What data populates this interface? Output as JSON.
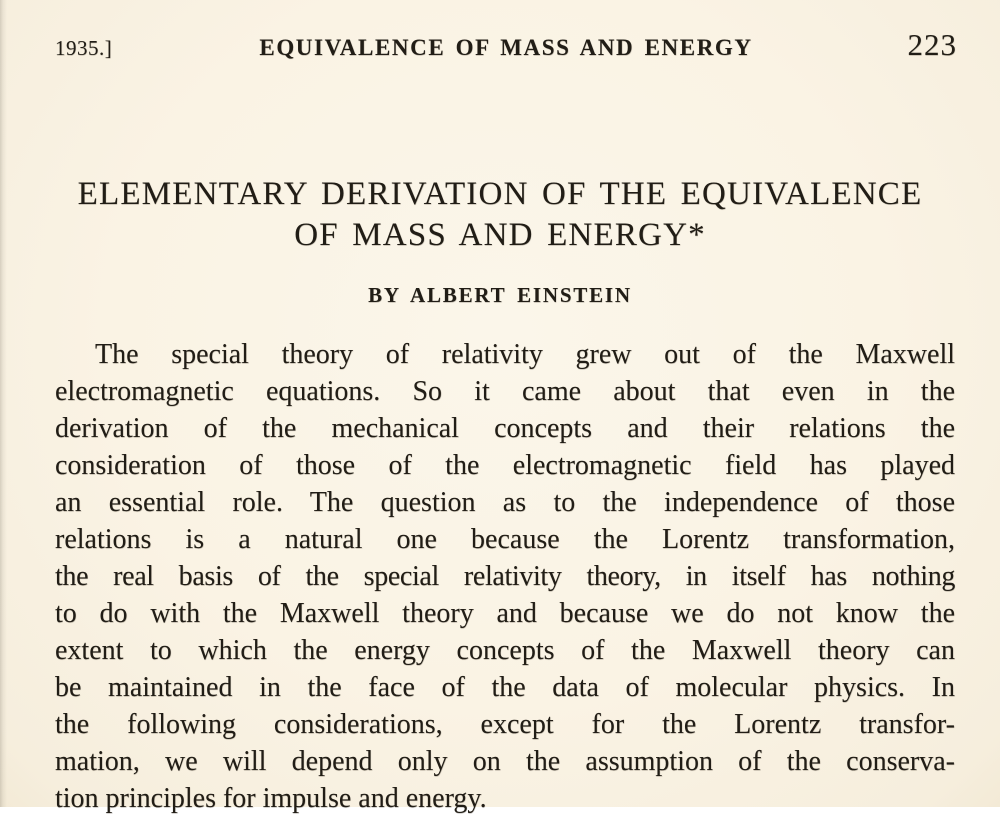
{
  "header": {
    "date_label": "1935.]",
    "running_title": "EQUIVALENCE OF MASS AND ENERGY",
    "page_number": "223"
  },
  "article": {
    "title_line_1": "ELEMENTARY DERIVATION OF THE EQUIVALENCE",
    "title_line_2": "OF MASS AND ENERGY*",
    "byline": "BY ALBERT EINSTEIN",
    "paragraph_lines": [
      "The special theory of relativity grew out of the Maxwell",
      "electromagnetic equations. So it came about that even in the",
      "derivation of the mechanical concepts and their relations the",
      "consideration of those of the electromagnetic field has played",
      "an essential role. The question as to the independence of those",
      "relations is a natural one because the Lorentz transformation,",
      "the real basis of the special relativity theory, in itself has nothing",
      "to do with the Maxwell theory and because we do not know the",
      "extent to which the energy concepts of the Maxwell theory can",
      "be maintained in the face of the data of molecular physics. In",
      "the following considerations, except for the Lorentz transfor-",
      "mation, we will depend only on the assumption of the conserva-",
      "tion principles for impulse and energy."
    ]
  },
  "colors": {
    "paper_background": "#faf3e4",
    "ink": "#211d16"
  }
}
